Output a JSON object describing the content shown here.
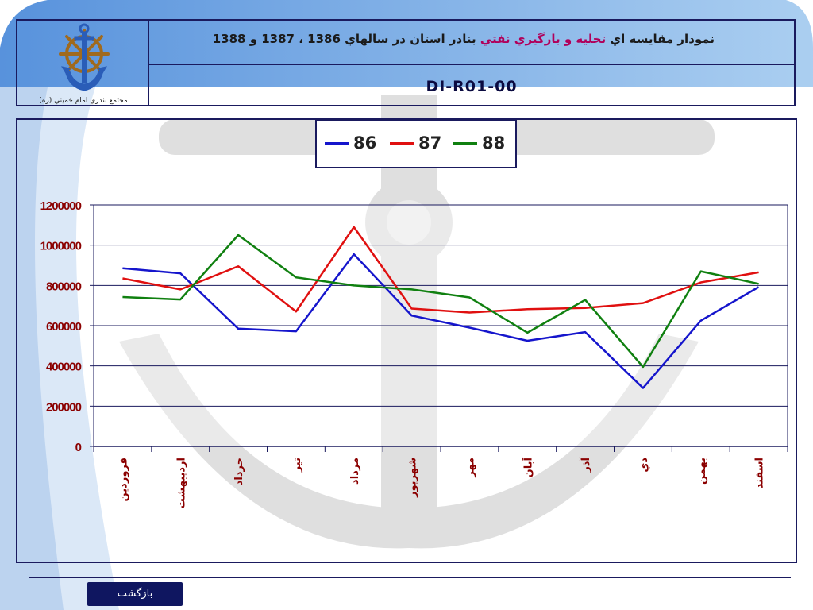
{
  "header": {
    "title_part1": "نمودار مقايسه اي ",
    "title_part2": "تخليه و بارگيري نفتي",
    "title_part3": " بنادر استان در سالهاي 1386 ، 1387 و 1388",
    "code": "DI-R01-00",
    "logo_caption": "مجتمع بندري امام خميني (ره)"
  },
  "colors": {
    "series_86": "#1515cc",
    "series_87": "#e01010",
    "series_88": "#108010",
    "frame": "#1a1a5e",
    "highlight_title": "#b0005a",
    "category_label": "#8b0000"
  },
  "legend": [
    "86",
    "87",
    "88"
  ],
  "chart_data": {
    "type": "line",
    "categories": [
      "فروردين",
      "ارديبهشت",
      "خرداد",
      "تير",
      "مرداد",
      "شهريور",
      "مهر",
      "آبان",
      "آذر",
      "دي",
      "بهمن",
      "اسفند"
    ],
    "series": [
      {
        "name": "86",
        "values": [
          885000,
          860000,
          585000,
          572000,
          955000,
          650000,
          590000,
          525000,
          568000,
          290000,
          625000,
          792000
        ]
      },
      {
        "name": "87",
        "values": [
          835000,
          780000,
          895000,
          670000,
          1090000,
          685000,
          665000,
          682000,
          688000,
          712000,
          815000,
          865000
        ]
      },
      {
        "name": "88",
        "values": [
          742000,
          730000,
          1050000,
          840000,
          800000,
          780000,
          740000,
          565000,
          728000,
          395000,
          870000,
          808000
        ]
      }
    ],
    "y_ticks": [
      "1200000",
      "1000000",
      "800000",
      "600000",
      "400000",
      "200000",
      "0"
    ],
    "ylim": [
      0,
      1200000
    ],
    "grid": true,
    "legend_position": "top-center"
  },
  "footer": {
    "back_label": "بازگشت"
  }
}
